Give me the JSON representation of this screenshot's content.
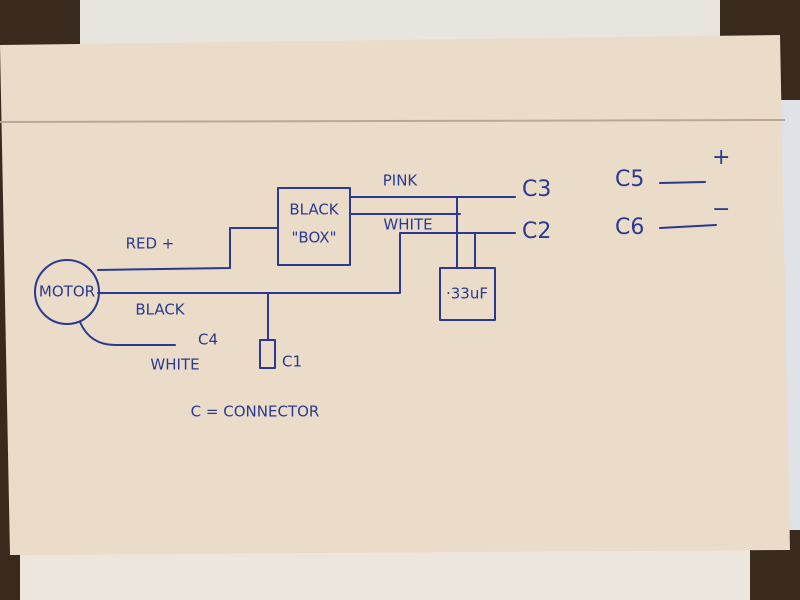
{
  "motor": {
    "label": "MOTOR"
  },
  "black_box": {
    "lines": [
      "BLACK",
      "\"BOX\""
    ]
  },
  "capacitor": {
    "label": "·33uF"
  },
  "wires": [
    {
      "label": "RED +"
    },
    {
      "label": "BLACK"
    },
    {
      "label": "WHITE"
    },
    {
      "label": "PINK"
    },
    {
      "label": "WHITE"
    }
  ],
  "connectors": [
    {
      "label": "C1"
    },
    {
      "label": "C2"
    },
    {
      "label": "C3"
    },
    {
      "label": "C4"
    },
    {
      "label": "C5",
      "sign": "+"
    },
    {
      "label": "C6",
      "sign": "−"
    }
  ],
  "legend": "C = CONNECTOR"
}
